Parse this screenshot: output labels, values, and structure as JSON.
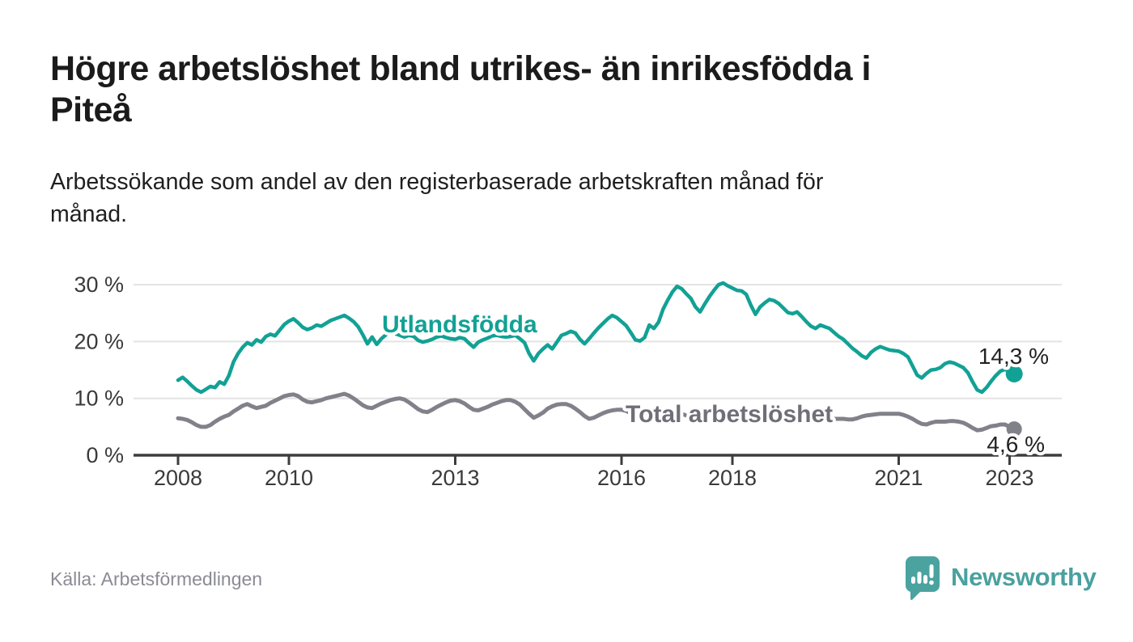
{
  "title": {
    "line1": "Högre arbetslöshet bland utrikes- än inrikesfödda i",
    "line2": "Piteå"
  },
  "subtitle": {
    "line1": "Arbetssökande som andel av den registerbaserade arbetskraften månad för",
    "line2": "månad."
  },
  "source": {
    "text": "Källa: Arbetsförmedlingen"
  },
  "brand": {
    "name": "Newsworthy",
    "color": "#4aa19f",
    "logo_icon": "speech-bubble-bar-chart-icon"
  },
  "colors": {
    "background": "#ffffff",
    "title_text": "#1b1b1b",
    "grid": "#e3e3e3",
    "axis": "#3d3d3d",
    "tick_label": "#3a3a3a",
    "value_label": "#222222",
    "series_foreign": "#12a195",
    "series_total": "#81818a",
    "source_text": "#8b8b94"
  },
  "chart_data": {
    "type": "line",
    "title": "",
    "xlabel": "",
    "ylabel": "",
    "x_unit": "month",
    "start": "2008-01",
    "end": "2023-02",
    "x_ticks": [
      2008,
      2010,
      2013,
      2016,
      2018,
      2021,
      2023
    ],
    "y_ticks": [
      0,
      10,
      20,
      30
    ],
    "y_tick_labels": [
      "0 %",
      "10 %",
      "20 %",
      "30 %"
    ],
    "ylim": [
      0,
      33
    ],
    "grid": "horizontal",
    "legend_position": "inline-labels",
    "series": [
      {
        "name": "Utlandsfödda",
        "color": "#12a195",
        "end_value": 14.3,
        "end_label": "14,3 %",
        "values": [
          13.2,
          13.7,
          13.0,
          12.2,
          11.5,
          11.1,
          11.6,
          12.1,
          11.9,
          12.9,
          12.5,
          14.0,
          16.4,
          17.9,
          19.0,
          19.8,
          19.4,
          20.3,
          19.9,
          20.9,
          21.3,
          21.0,
          22.0,
          23.0,
          23.6,
          24.0,
          23.3,
          22.5,
          22.1,
          22.4,
          22.9,
          22.7,
          23.2,
          23.7,
          24.0,
          24.3,
          24.6,
          24.1,
          23.5,
          22.6,
          21.2,
          19.6,
          20.8,
          19.5,
          20.5,
          21.2,
          21.7,
          21.4,
          21.1,
          20.8,
          21.1,
          20.9,
          20.2,
          19.9,
          20.1,
          20.4,
          20.8,
          21.0,
          20.7,
          20.5,
          20.4,
          20.7,
          20.5,
          19.7,
          19.0,
          19.9,
          20.3,
          20.6,
          21.0,
          21.1,
          20.9,
          20.8,
          20.9,
          21.1,
          20.5,
          19.8,
          17.9,
          16.6,
          17.9,
          18.7,
          19.4,
          18.7,
          19.9,
          21.1,
          21.4,
          21.8,
          21.5,
          20.4,
          19.6,
          20.5,
          21.5,
          22.4,
          23.2,
          24.0,
          24.6,
          24.2,
          23.5,
          22.8,
          21.6,
          20.3,
          20.1,
          20.7,
          22.9,
          22.3,
          23.4,
          25.7,
          27.3,
          28.7,
          29.7,
          29.3,
          28.4,
          27.6,
          26.1,
          25.2,
          26.6,
          27.9,
          29.0,
          30.0,
          30.3,
          29.8,
          29.4,
          29.0,
          28.9,
          28.3,
          26.4,
          24.8,
          26.1,
          26.8,
          27.4,
          27.2,
          26.7,
          25.9,
          25.1,
          24.9,
          25.2,
          24.4,
          23.5,
          22.7,
          22.3,
          22.9,
          22.6,
          22.3,
          21.6,
          20.9,
          20.4,
          19.6,
          18.8,
          18.2,
          17.5,
          17.1,
          18.1,
          18.7,
          19.1,
          18.8,
          18.5,
          18.4,
          18.3,
          17.9,
          17.3,
          15.7,
          14.1,
          13.6,
          14.4,
          15.0,
          15.1,
          15.4,
          16.1,
          16.4,
          16.2,
          15.8,
          15.4,
          14.5,
          12.9,
          11.5,
          11.1,
          11.9,
          13.0,
          14.0,
          14.8,
          15.1,
          14.7,
          14.3
        ]
      },
      {
        "name": "Total arbetslöshet",
        "color": "#81818a",
        "end_value": 4.6,
        "end_label": "4,6 %",
        "values": [
          6.5,
          6.4,
          6.2,
          5.8,
          5.3,
          5.0,
          5.0,
          5.3,
          5.9,
          6.4,
          6.8,
          7.1,
          7.7,
          8.2,
          8.7,
          9.0,
          8.6,
          8.3,
          8.5,
          8.7,
          9.2,
          9.6,
          10.0,
          10.4,
          10.6,
          10.7,
          10.4,
          9.8,
          9.4,
          9.3,
          9.5,
          9.7,
          10.0,
          10.2,
          10.4,
          10.6,
          10.8,
          10.5,
          10.0,
          9.4,
          8.8,
          8.4,
          8.3,
          8.7,
          9.1,
          9.4,
          9.7,
          9.9,
          10.0,
          9.8,
          9.3,
          8.7,
          8.1,
          7.7,
          7.6,
          8.0,
          8.5,
          8.9,
          9.3,
          9.6,
          9.7,
          9.5,
          9.1,
          8.5,
          8.0,
          7.9,
          8.2,
          8.5,
          8.9,
          9.2,
          9.5,
          9.7,
          9.7,
          9.4,
          8.9,
          8.1,
          7.3,
          6.6,
          7.0,
          7.5,
          8.2,
          8.6,
          8.9,
          9.0,
          9.0,
          8.7,
          8.2,
          7.6,
          6.9,
          6.4,
          6.6,
          7.0,
          7.4,
          7.7,
          7.9,
          8.0,
          8.0,
          7.8,
          7.4,
          6.8,
          6.2,
          5.9,
          6.2,
          6.6,
          7.0,
          7.2,
          7.4,
          7.5,
          7.5,
          7.3,
          7.0,
          6.5,
          6.1,
          6.0,
          6.2,
          6.5,
          6.8,
          7.0,
          7.1,
          7.2,
          7.2,
          7.0,
          6.7,
          6.2,
          5.9,
          5.8,
          6.0,
          6.3,
          6.6,
          6.7,
          6.8,
          6.8,
          6.7,
          6.6,
          6.4,
          6.2,
          6.0,
          6.0,
          6.1,
          6.3,
          6.4,
          6.4,
          6.4,
          6.4,
          6.4,
          6.3,
          6.3,
          6.5,
          6.8,
          7.0,
          7.1,
          7.2,
          7.3,
          7.3,
          7.3,
          7.3,
          7.3,
          7.1,
          6.8,
          6.4,
          5.9,
          5.5,
          5.4,
          5.7,
          5.9,
          5.9,
          5.9,
          6.0,
          6.0,
          5.9,
          5.7,
          5.3,
          4.8,
          4.4,
          4.5,
          4.8,
          5.1,
          5.2,
          5.4,
          5.4,
          5.0,
          4.6
        ]
      }
    ]
  }
}
